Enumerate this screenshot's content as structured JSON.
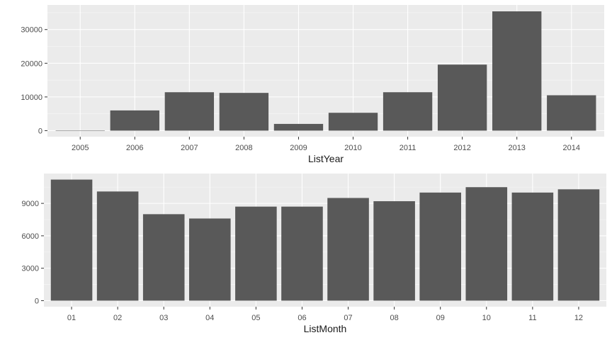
{
  "colors": {
    "panel_background": "#ebebeb",
    "grid_major": "#ffffff",
    "grid_minor": "#f4f4f4",
    "bar_fill": "#595959",
    "tick_mark": "#333333",
    "tick_text": "#4d4d4d",
    "axis_title": "#1a1a1a"
  },
  "chart_data": [
    {
      "type": "bar",
      "title": "",
      "xlabel": "ListYear",
      "ylabel": "",
      "categories": [
        "2005",
        "2006",
        "2007",
        "2008",
        "2009",
        "2010",
        "2011",
        "2012",
        "2013",
        "2014"
      ],
      "values": [
        30,
        6000,
        11400,
        11200,
        2000,
        5300,
        11400,
        19600,
        35400,
        10500
      ],
      "yticks": [
        0,
        10000,
        20000,
        30000
      ],
      "ylim": [
        -1800,
        37300
      ],
      "grid": true,
      "legend": "none"
    },
    {
      "type": "bar",
      "title": "",
      "xlabel": "ListMonth",
      "ylabel": "",
      "categories": [
        "01",
        "02",
        "03",
        "04",
        "05",
        "06",
        "07",
        "08",
        "09",
        "10",
        "11",
        "12"
      ],
      "values": [
        11200,
        10100,
        8000,
        7600,
        8700,
        8700,
        9500,
        9200,
        10000,
        10500,
        10000,
        10300
      ],
      "yticks": [
        0,
        3000,
        6000,
        9000
      ],
      "ylim": [
        -560,
        11760
      ],
      "grid": true,
      "legend": "none"
    }
  ]
}
